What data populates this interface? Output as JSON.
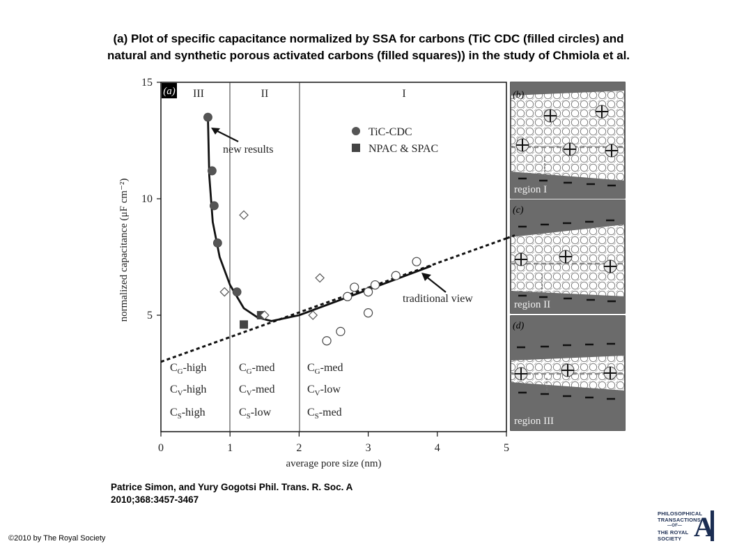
{
  "title": {
    "line1": "(a) Plot of specific capacitance normalized by SSA for carbons (TiC CDC (filled circles) and",
    "line2": "natural and synthetic porous activated carbons (filled squares)) in the study of Chmiola et al."
  },
  "citation": {
    "line1": "Patrice Simon, and Yury Gogotsi Phil. Trans. R. Soc. A",
    "line2": "2010;368:3457-3467"
  },
  "copyright": "©2010 by The Royal Society",
  "logo": {
    "line1": "PHILOSOPHICAL",
    "line2": "TRANSACTIONS",
    "line3": "—OF—",
    "line4": "THE ROYAL",
    "line5": "SOCIETY",
    "letter": "A",
    "color": "#1b2d52"
  },
  "chart_data": {
    "type": "scatter",
    "panel_label": "(a)",
    "xlabel": "average pore size (nm)",
    "ylabel": "normalized capacitance (μF cm⁻²)",
    "xlim": [
      0,
      5
    ],
    "ylim": [
      0,
      15
    ],
    "xticks": [
      0,
      1,
      2,
      3,
      4,
      5
    ],
    "yticks": [
      5,
      10,
      15
    ],
    "regions": [
      {
        "name": "III",
        "x_range": [
          0,
          1
        ]
      },
      {
        "name": "II",
        "x_range": [
          1,
          2
        ]
      },
      {
        "name": "I",
        "x_range": [
          2,
          5
        ]
      }
    ],
    "legend": {
      "position": "top-center",
      "entries": [
        "TiC-CDC",
        "NPAC & SPAC"
      ]
    },
    "series": [
      {
        "name": "TiC-CDC",
        "marker": "filled-circle",
        "x": [
          0.68,
          0.74,
          0.77,
          0.82,
          1.1
        ],
        "y": [
          13.5,
          11.2,
          9.7,
          8.1,
          6.0
        ]
      },
      {
        "name": "NPAC & SPAC",
        "marker": "filled-square",
        "x": [
          1.2,
          1.45
        ],
        "y": [
          4.6,
          5.0
        ]
      },
      {
        "marker": "open-diamond",
        "x": [
          0.92,
          1.2,
          1.5,
          2.2,
          2.3
        ],
        "y": [
          6.0,
          9.3,
          5.0,
          5.0,
          6.6
        ]
      },
      {
        "marker": "open-circle",
        "x": [
          2.4,
          2.6,
          2.7,
          2.8,
          3.0,
          3.0,
          3.1,
          3.4,
          3.7
        ],
        "y": [
          3.9,
          4.3,
          5.8,
          6.2,
          5.1,
          6.0,
          6.3,
          6.7,
          7.3
        ]
      }
    ],
    "lines": [
      {
        "name": "new results",
        "style": "solid",
        "x": [
          0.68,
          0.7,
          0.75,
          0.85,
          1.0,
          1.2,
          1.4,
          1.6,
          2.0,
          3.0,
          3.9
        ],
        "y": [
          13.5,
          11.0,
          9.0,
          7.5,
          6.3,
          5.3,
          4.9,
          4.75,
          5.0,
          6.1,
          7.1
        ]
      },
      {
        "name": "traditional view",
        "style": "dashed",
        "x": [
          0,
          5
        ],
        "y": [
          3.0,
          8.3
        ]
      }
    ],
    "annotations": [
      {
        "text": "new results",
        "x": 0.9,
        "y": 12.0
      },
      {
        "text": "traditional view",
        "x": 3.5,
        "y": 5.7
      }
    ],
    "table": [
      [
        "CG-high",
        "CG-med",
        "CG-med"
      ],
      [
        "CV-high",
        "CV-med",
        "CV-low"
      ],
      [
        "CS-high",
        "CS-low",
        "CS-med"
      ]
    ],
    "side_panels": [
      {
        "label": "(b)",
        "region": "region I"
      },
      {
        "label": "(c)",
        "region": "region II"
      },
      {
        "label": "(d)",
        "region": "region III"
      }
    ]
  }
}
